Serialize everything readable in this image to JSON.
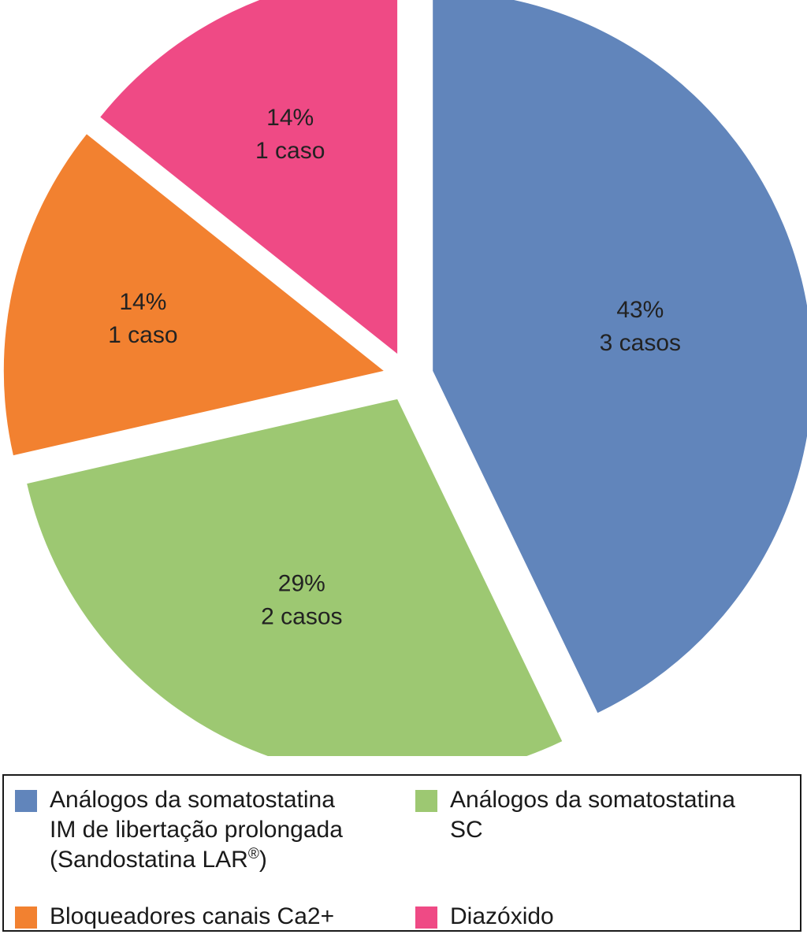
{
  "chart_data": {
    "type": "pie",
    "title": "",
    "slices": [
      {
        "name": "Análogos da somatostatina IM de libertação prolongada (Sandostatina LAR®)",
        "value": 3,
        "percent_label": "43%",
        "count_label": "3 casos",
        "color": "#6185bb"
      },
      {
        "name": "Análogos da somatostatina SC",
        "value": 2,
        "percent_label": "29%",
        "count_label": "2 casos",
        "color": "#9dc872"
      },
      {
        "name": "Bloqueadores canais Ca2+",
        "value": 1,
        "percent_label": "14%",
        "count_label": "1 caso",
        "color": "#f28130"
      },
      {
        "name": "Diazóxido",
        "value": 1,
        "percent_label": "14%",
        "count_label": "1 caso",
        "color": "#ef4a85"
      }
    ],
    "legend": {
      "placement": "bottom",
      "items": [
        {
          "lines": [
            "Análogos da somatostatina",
            "IM de libertação prolongada",
            "(Sandostatina LAR"
          ],
          "sup": "®",
          "tail": ")",
          "color": "#6185bb"
        },
        {
          "lines": [
            "Análogos da somatostatina",
            "SC"
          ],
          "color": "#9dc872"
        },
        {
          "lines": [
            "Bloqueadores canais Ca2+"
          ],
          "color": "#f28130"
        },
        {
          "lines": [
            "Diazóxido"
          ],
          "color": "#ef4a85"
        }
      ]
    }
  }
}
